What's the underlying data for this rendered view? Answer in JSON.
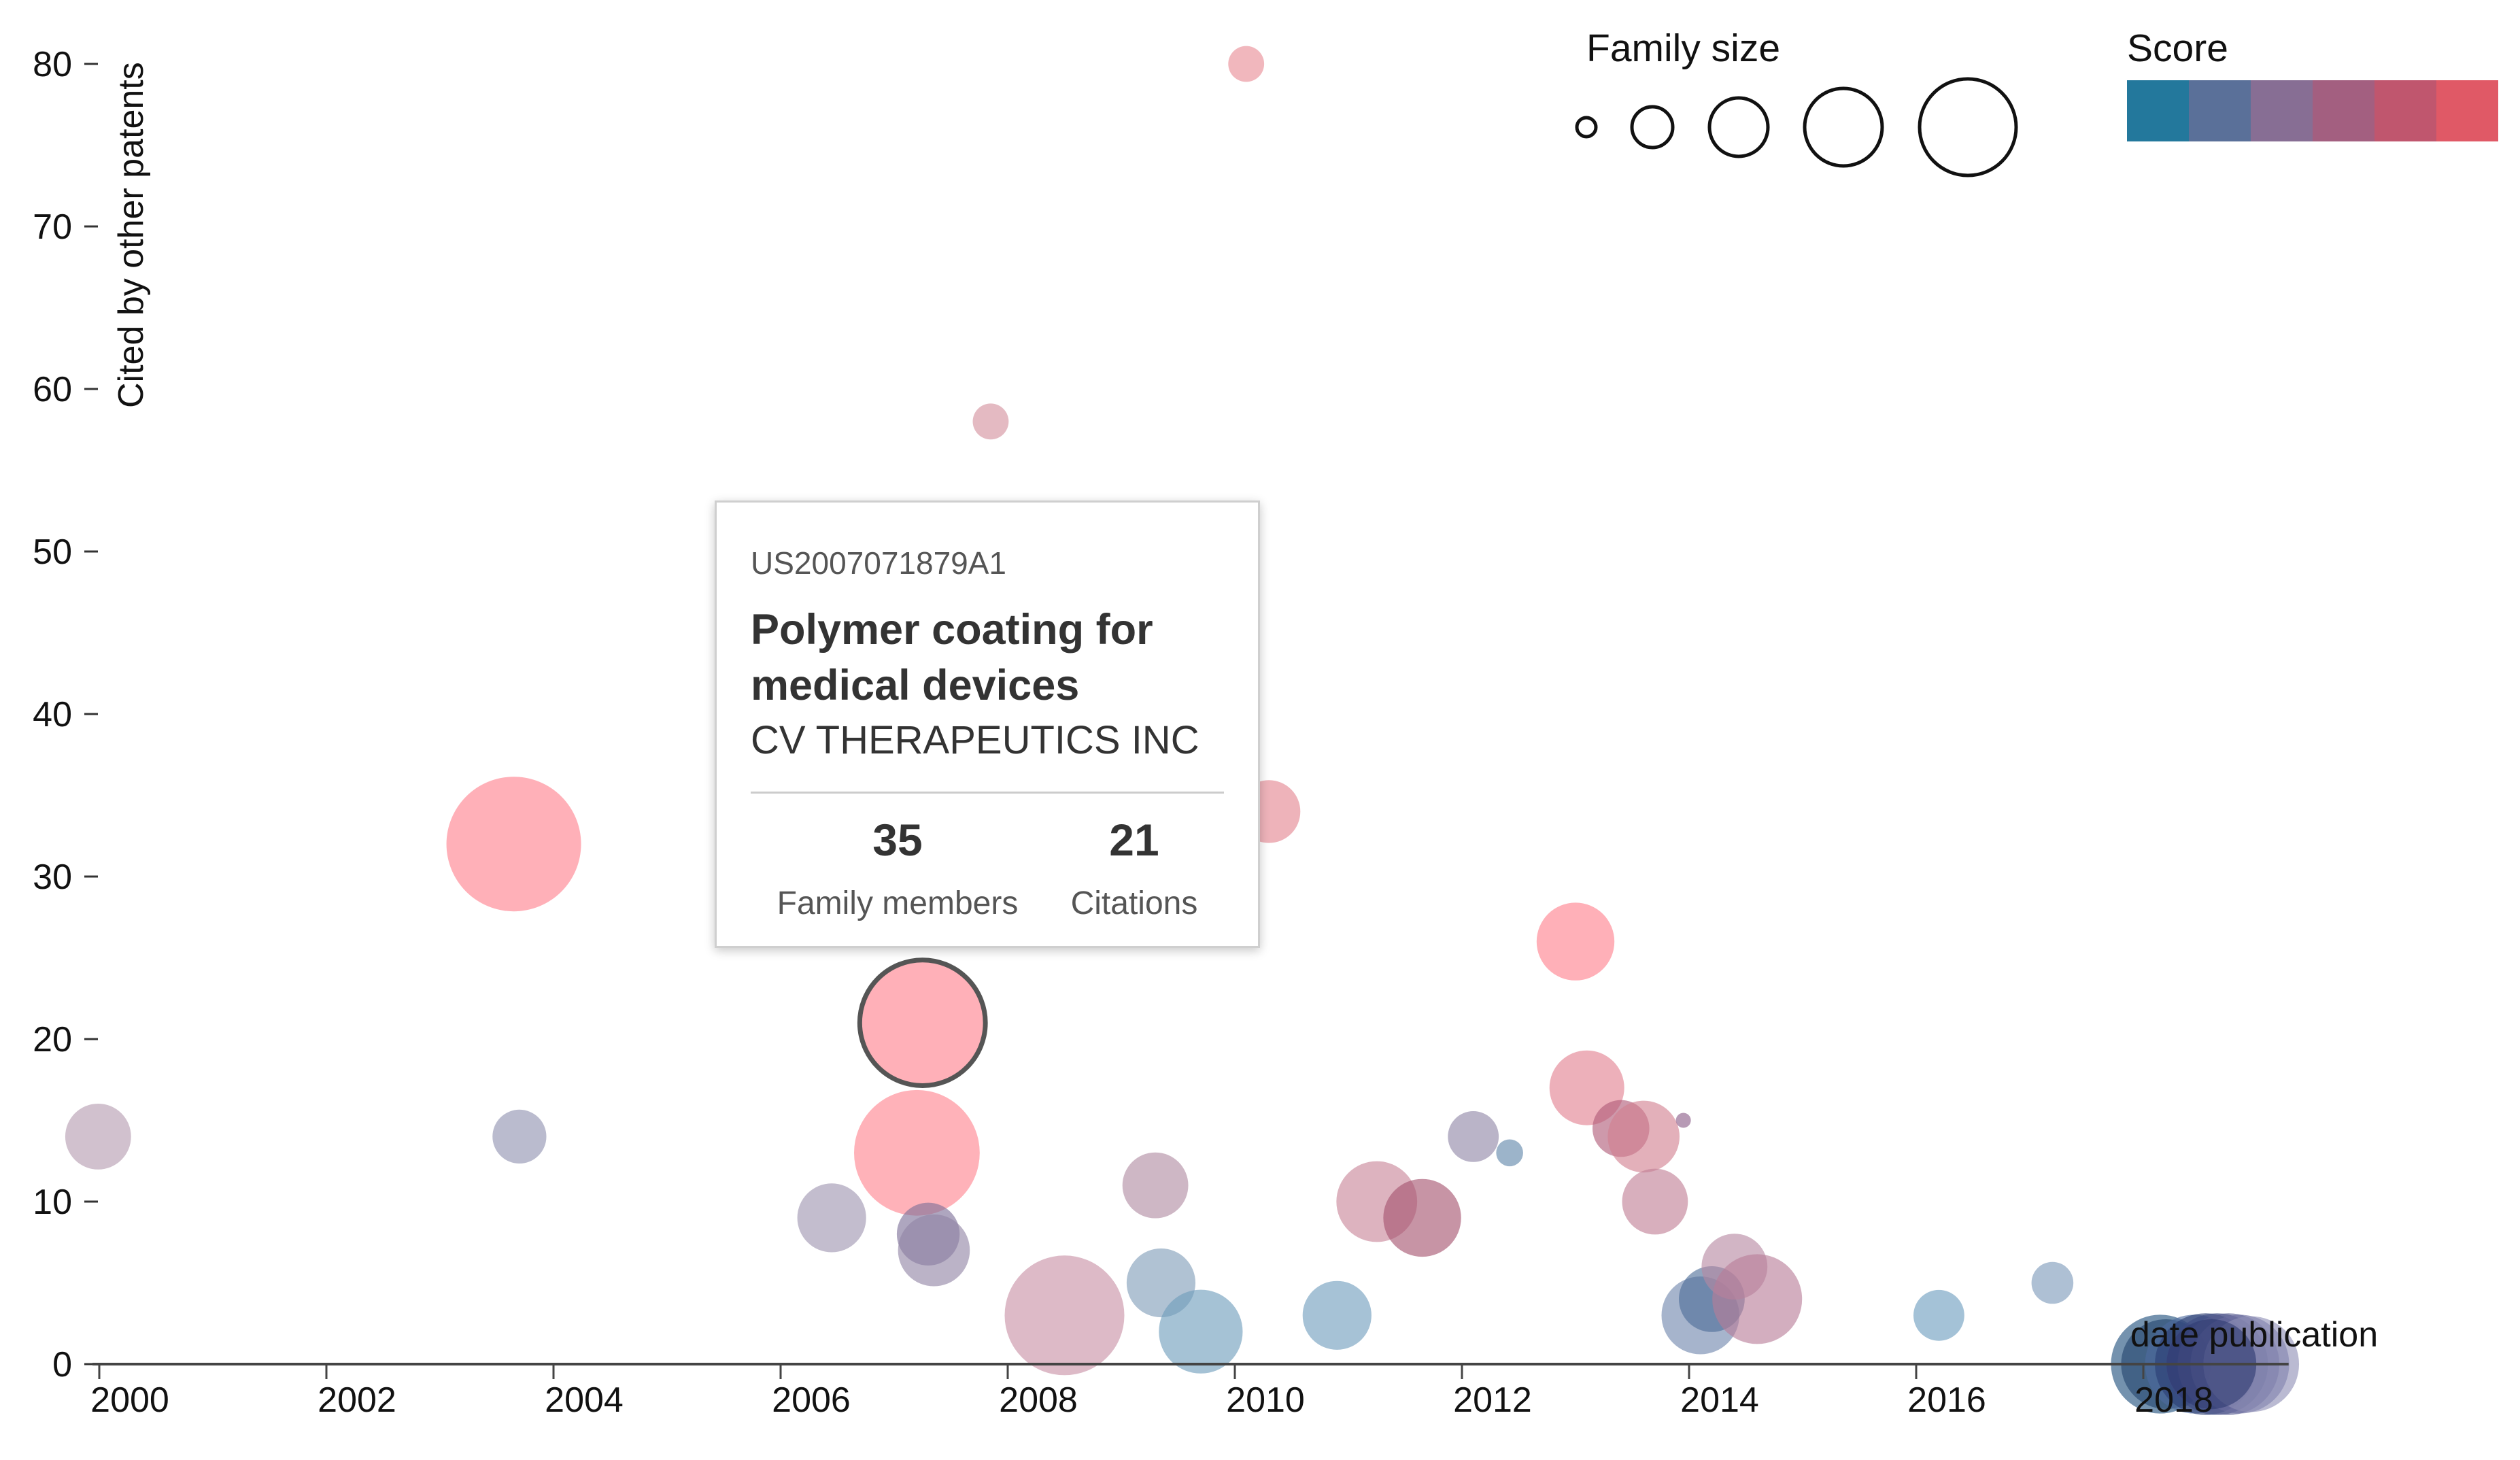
{
  "chart_data": {
    "type": "scatter",
    "xlabel": "date publication",
    "ylabel": "Cited by other patents",
    "xlim": [
      1999.8,
      2019.1
    ],
    "ylim": [
      0,
      80
    ],
    "x_ticks": [
      2000,
      2002,
      2004,
      2006,
      2008,
      2010,
      2012,
      2014,
      2016,
      2018
    ],
    "x_tick_labels": [
      "2000",
      "2002",
      "2004",
      "2006",
      "2008",
      "2010",
      "2012",
      "2014",
      "2016",
      "2018"
    ],
    "y_ticks": [
      0,
      10,
      20,
      30,
      40,
      50,
      60,
      70,
      80
    ],
    "y_tick_labels": [
      "0",
      "10",
      "20",
      "30",
      "40",
      "50",
      "60",
      "70",
      "80"
    ],
    "points": [
      {
        "x": 1999.99,
        "y": 14,
        "size": 22,
        "color": "#b49bb0"
      },
      {
        "x": 2003.65,
        "y": 32,
        "size": 45,
        "color": "#ff7f8c"
      },
      {
        "x": 2003.7,
        "y": 14,
        "size": 18,
        "color": "#8f92b0"
      },
      {
        "x": 2006.45,
        "y": 9,
        "size": 23,
        "color": "#9e95b0"
      },
      {
        "x": 2007.2,
        "y": 13,
        "size": 42,
        "color": "#ff828e"
      },
      {
        "x": 2007.25,
        "y": 21,
        "size": 42,
        "color": "#ff7f8c",
        "highlighted": true
      },
      {
        "x": 2007.3,
        "y": 8,
        "size": 21,
        "color": "#7d6f98"
      },
      {
        "x": 2007.35,
        "y": 7,
        "size": 24,
        "color": "#9284a4"
      },
      {
        "x": 2007.85,
        "y": 58,
        "size": 12,
        "color": "#d4909d"
      },
      {
        "x": 2008.5,
        "y": 3,
        "size": 40,
        "color": "#c890a4"
      },
      {
        "x": 2009.3,
        "y": 11,
        "size": 22,
        "color": "#b08aa2"
      },
      {
        "x": 2009.35,
        "y": 5,
        "size": 23,
        "color": "#7f9cb8"
      },
      {
        "x": 2009.7,
        "y": 2,
        "size": 28,
        "color": "#6e9cbc"
      },
      {
        "x": 2010.1,
        "y": 80,
        "size": 12,
        "color": "#e98a95"
      },
      {
        "x": 2010.3,
        "y": 34,
        "size": 21,
        "color": "#e4858f"
      },
      {
        "x": 2010.9,
        "y": 3,
        "size": 23,
        "color": "#6f9dbd"
      },
      {
        "x": 2011.25,
        "y": 10,
        "size": 27,
        "color": "#c88598"
      },
      {
        "x": 2011.65,
        "y": 9,
        "size": 26,
        "color": "#a5526e"
      },
      {
        "x": 2012.1,
        "y": 14,
        "size": 17,
        "color": "#8f86a6"
      },
      {
        "x": 2012.42,
        "y": 13,
        "size": 9,
        "color": "#5f86aa"
      },
      {
        "x": 2013.0,
        "y": 26,
        "size": 26,
        "color": "#ff7f8c"
      },
      {
        "x": 2013.1,
        "y": 17,
        "size": 25,
        "color": "#e27f8f"
      },
      {
        "x": 2013.4,
        "y": 14.5,
        "size": 19,
        "color": "#b05a78"
      },
      {
        "x": 2013.6,
        "y": 14,
        "size": 24,
        "color": "#d27f90"
      },
      {
        "x": 2013.7,
        "y": 10,
        "size": 22,
        "color": "#c07e94"
      },
      {
        "x": 2013.95,
        "y": 15,
        "size": 5,
        "color": "#8a5c88"
      },
      {
        "x": 2014.1,
        "y": 3,
        "size": 26,
        "color": "#6f86ad"
      },
      {
        "x": 2014.2,
        "y": 4,
        "size": 22,
        "color": "#4d6e98"
      },
      {
        "x": 2014.4,
        "y": 6,
        "size": 22,
        "color": "#b787a2"
      },
      {
        "x": 2014.6,
        "y": 4,
        "size": 30,
        "color": "#b87d98"
      },
      {
        "x": 2016.2,
        "y": 3,
        "size": 17,
        "color": "#6c9cbf"
      },
      {
        "x": 2017.2,
        "y": 5,
        "size": 14,
        "color": "#7d9ab9"
      },
      {
        "x": 2018.15,
        "y": 0,
        "size": 33,
        "color": "#1f4f7c"
      },
      {
        "x": 2018.2,
        "y": 0,
        "size": 30,
        "color": "#23456e"
      },
      {
        "x": 2018.45,
        "y": 0,
        "size": 33,
        "color": "#4d6b9e"
      },
      {
        "x": 2018.55,
        "y": 0,
        "size": 34,
        "color": "#2c3e73"
      },
      {
        "x": 2018.65,
        "y": 0,
        "size": 34,
        "color": "#3e4a82"
      },
      {
        "x": 2018.75,
        "y": 0,
        "size": 34,
        "color": "#575c90"
      },
      {
        "x": 2018.85,
        "y": 0,
        "size": 33,
        "color": "#6c6e9f"
      },
      {
        "x": 2018.95,
        "y": 0,
        "size": 32,
        "color": "#8f8fb6"
      },
      {
        "x": 2018.6,
        "y": 0,
        "size": 30,
        "color": "#313c72"
      }
    ],
    "legend": {
      "family_size_title": "Family size",
      "family_size_samples": [
        1,
        2,
        3,
        4,
        5
      ],
      "score_title": "Score",
      "score_colors": [
        "#23789c",
        "#5a7099",
        "#876e94",
        "#a35f80",
        "#c0566e",
        "#e05966"
      ]
    }
  },
  "tooltip": {
    "patent_id": "US2007071879A1",
    "title": "Polymer coating for medical devices",
    "assignee": "CV THERAPEUTICS INC",
    "family_members_value": "35",
    "family_members_label": "Family members",
    "citations_value": "21",
    "citations_label": "Citations"
  }
}
